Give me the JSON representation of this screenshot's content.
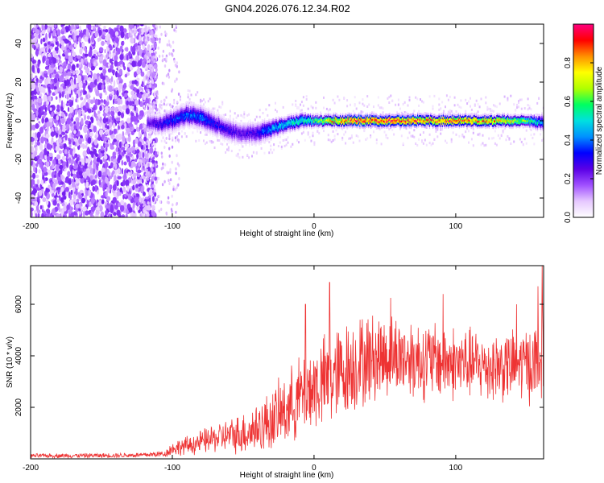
{
  "title": "GN04.2026.076.12.34.R02",
  "chart_data": [
    {
      "type": "heatmap",
      "name": "spectrogram",
      "xlabel": "Height of straight line (km)",
      "ylabel": "Frequency (Hz)",
      "xlim": [
        -200,
        162
      ],
      "ylim": [
        -50,
        50
      ],
      "xticks": [
        -200,
        -100,
        0,
        100
      ],
      "xtick_labels": [
        "-200",
        "-100",
        "0",
        "100"
      ],
      "yticks": [
        -40,
        -20,
        0,
        20,
        40
      ],
      "ytick_labels": [
        "-40",
        "-20",
        "0",
        "20",
        "40"
      ],
      "grid": false,
      "colorbar": {
        "label": "Normalized spectral amplitude",
        "range": [
          0,
          1
        ],
        "ticks": [
          0.0,
          0.2,
          0.4,
          0.6,
          0.8
        ],
        "tick_labels": [
          "0.0",
          "0.2",
          "0.4",
          "0.6",
          "0.8"
        ],
        "colors": [
          "#ffffff",
          "#e6c8ff",
          "#a050ff",
          "#5a00e6",
          "#0000ff",
          "#0090ff",
          "#00e0e0",
          "#00ff60",
          "#b0ff00",
          "#ffff00",
          "#ff9000",
          "#ff0000",
          "#ff0080"
        ]
      },
      "noise_region_x": [
        -200,
        -115
      ],
      "signal_ridge": {
        "x": [
          -118,
          -110,
          -100,
          -90,
          -80,
          -70,
          -60,
          -50,
          -40,
          -30,
          -20,
          -10,
          0,
          10,
          20,
          30,
          40,
          50,
          60,
          70,
          80,
          90,
          100,
          110,
          120,
          130,
          140,
          150,
          162
        ],
        "frequency": [
          -1,
          -2,
          0,
          3,
          2,
          -2,
          -5,
          -7,
          -6,
          -4,
          -2,
          0,
          0,
          0,
          0,
          0,
          0,
          0,
          0,
          0,
          0,
          0,
          0,
          0,
          0,
          0,
          0,
          0,
          -1
        ],
        "amplitude": [
          0.25,
          0.3,
          0.35,
          0.38,
          0.4,
          0.32,
          0.28,
          0.25,
          0.3,
          0.45,
          0.5,
          0.55,
          0.6,
          0.75,
          0.85,
          0.95,
          0.95,
          0.95,
          0.95,
          0.95,
          0.9,
          0.9,
          0.9,
          0.85,
          0.85,
          0.8,
          0.75,
          0.6,
          0.45
        ],
        "width_hz": [
          5,
          5,
          6,
          6,
          6,
          6,
          6,
          6,
          6,
          5,
          4,
          4,
          3,
          3,
          3,
          3,
          3,
          3,
          3,
          3,
          3,
          3,
          3,
          3,
          3,
          3,
          3,
          3,
          4
        ]
      }
    },
    {
      "type": "line",
      "name": "snr",
      "xlabel": "Height of straight line (km)",
      "ylabel": "SNR (10 * v/v)",
      "xlim": [
        -200,
        162
      ],
      "ylim": [
        0,
        7500
      ],
      "xticks": [
        -200,
        -100,
        0,
        100
      ],
      "xtick_labels": [
        "-200",
        "-100",
        "0",
        "100"
      ],
      "yticks": [
        2000,
        4000,
        6000
      ],
      "ytick_labels": [
        "2000",
        "4000",
        "6000"
      ],
      "grid": false,
      "series": [
        {
          "name": "SNR",
          "color": "#ee3333",
          "envelope_x": [
            -200,
            -150,
            -120,
            -105,
            -100,
            -90,
            -80,
            -70,
            -60,
            -50,
            -40,
            -30,
            -20,
            -10,
            -5,
            0,
            10,
            20,
            30,
            40,
            50,
            60,
            70,
            80,
            90,
            100,
            110,
            120,
            130,
            140,
            150,
            158,
            162
          ],
          "envelope_mean": [
            120,
            130,
            150,
            200,
            400,
            500,
            650,
            800,
            900,
            1000,
            1200,
            1500,
            1900,
            2400,
            2600,
            2800,
            3000,
            3400,
            3700,
            3900,
            4000,
            4000,
            3900,
            3800,
            3800,
            3700,
            3700,
            3600,
            3600,
            3600,
            3700,
            3700,
            4000
          ],
          "envelope_amp": [
            90,
            100,
            110,
            150,
            300,
            400,
            500,
            600,
            700,
            900,
            1100,
            1300,
            1500,
            1700,
            1800,
            1900,
            2000,
            2000,
            2000,
            1900,
            1800,
            1700,
            1700,
            1700,
            1600,
            1600,
            1500,
            1500,
            1500,
            1500,
            1600,
            1700,
            2200
          ],
          "peaks": [
            {
              "x": -6,
              "y": 6000
            },
            {
              "x": 11,
              "y": 6850
            },
            {
              "x": 54,
              "y": 6250
            },
            {
              "x": 91,
              "y": 6400
            },
            {
              "x": 143,
              "y": 6000
            },
            {
              "x": 158,
              "y": 6700
            },
            {
              "x": 161,
              "y": 7500
            }
          ]
        }
      ]
    }
  ]
}
